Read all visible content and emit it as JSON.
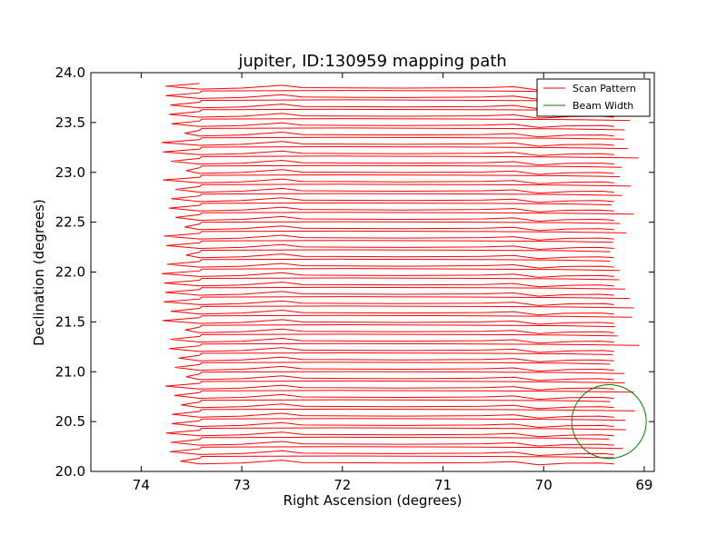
{
  "chart_data": {
    "type": "line",
    "title": "jupiter, ID:130959 mapping path",
    "xlabel": "Right Ascension (degrees)",
    "ylabel": "Declination (degrees)",
    "xlim": [
      74.5,
      68.9
    ],
    "ylim": [
      20.0,
      24.0
    ],
    "x_ticks": [
      74,
      73,
      72,
      71,
      70,
      69
    ],
    "y_ticks": [
      20.0,
      20.5,
      21.0,
      21.5,
      22.0,
      22.5,
      23.0,
      23.5,
      24.0
    ],
    "x_tick_labels": [
      "74",
      "73",
      "72",
      "71",
      "70",
      "69"
    ],
    "y_tick_labels": [
      "20.0",
      "20.5",
      "21.0",
      "21.5",
      "22.0",
      "22.5",
      "23.0",
      "23.5",
      "24.0"
    ],
    "grid": false,
    "legend_position": "top-right",
    "series": [
      {
        "name": "Scan Pattern",
        "color": "#ff0000",
        "pattern": "raster",
        "dec_start": 20.08,
        "dec_end": 23.84,
        "legs": 41,
        "ra_min": 73.82,
        "ra_max": 68.92
      },
      {
        "name": "Beam Width",
        "color": "#008000",
        "shape": "circle",
        "center_ra": 69.35,
        "center_dec": 20.5,
        "radius_ra": 0.37,
        "radius_dec": 0.37
      }
    ]
  }
}
